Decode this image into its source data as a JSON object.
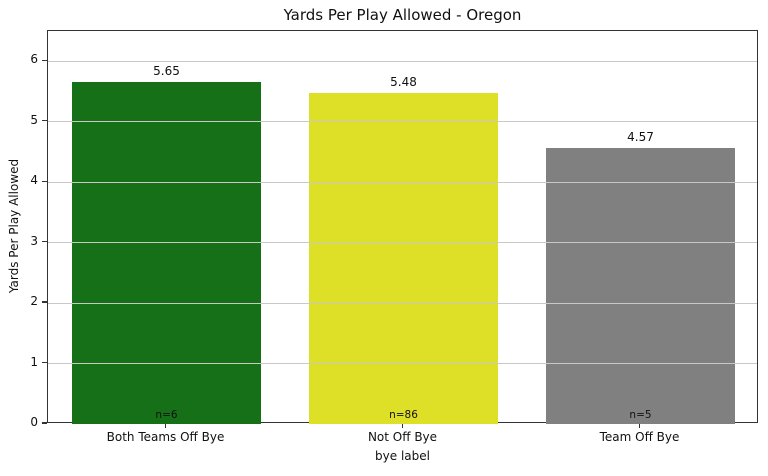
{
  "chart_data": {
    "type": "bar",
    "title": "Yards Per Play Allowed - Oregon",
    "xlabel": "bye label",
    "ylabel": "Yards Per Play Allowed",
    "categories": [
      "Both Teams Off Bye",
      "Not Off Bye",
      "Team Off Bye"
    ],
    "values": [
      5.65,
      5.48,
      4.57
    ],
    "value_labels": [
      "5.65",
      "5.48",
      "4.57"
    ],
    "count_labels": [
      "n=6",
      "n=86",
      "n=5"
    ],
    "bar_colors": [
      "#157017",
      "#dde026",
      "#808080"
    ],
    "ylim": [
      0,
      6.5
    ],
    "yticks": [
      0,
      1,
      2,
      3,
      4,
      5,
      6
    ],
    "grid": "horizontal",
    "grid_over_bars": true,
    "bar_width_fraction": 0.8,
    "grid_color": "#c8c8c8",
    "spine_color": "#333333",
    "legend": "none"
  }
}
